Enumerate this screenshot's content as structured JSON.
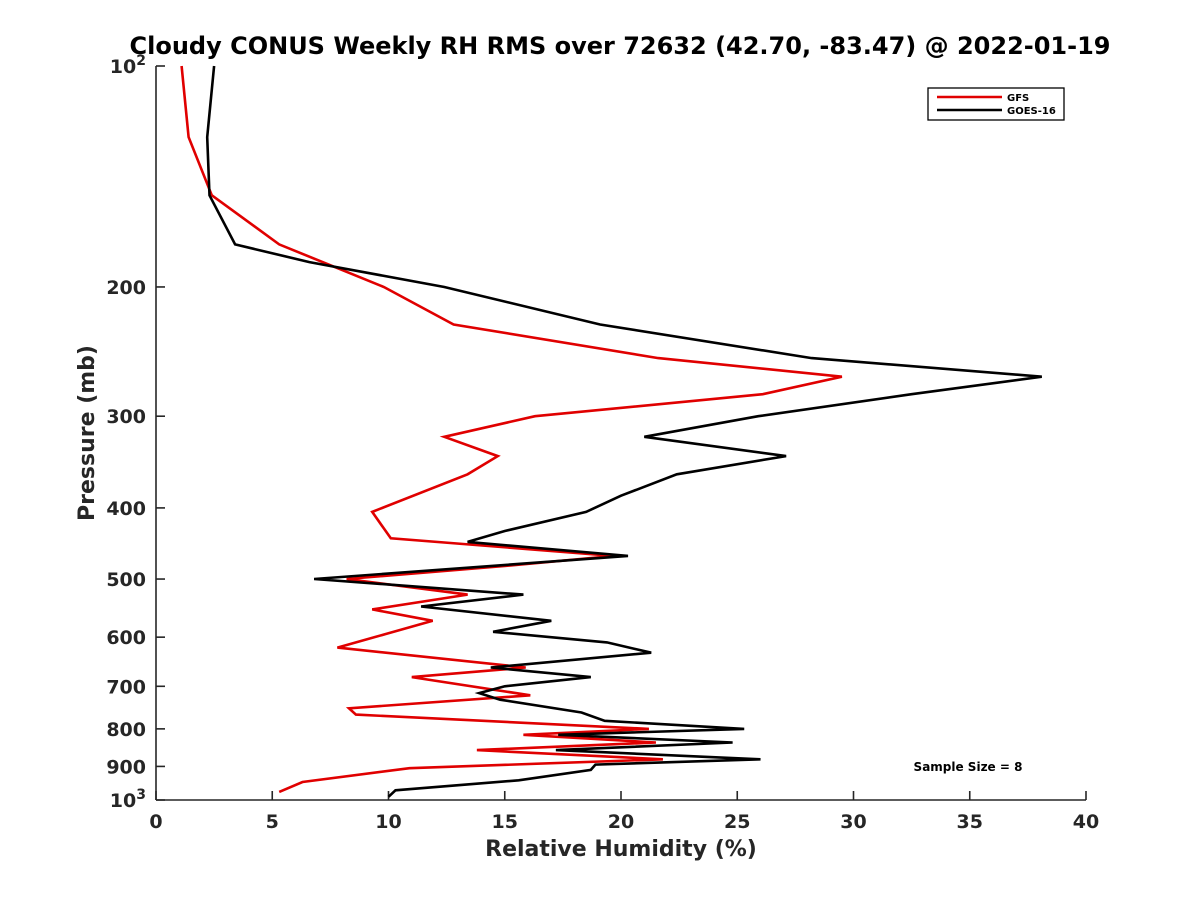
{
  "chart_data": {
    "type": "line",
    "title": "Cloudy CONUS Weekly RH RMS over 72632 (42.70, -83.47) @ 2022-01-19",
    "xlabel": "Relative Humidity (%)",
    "ylabel": "Pressure (mb)",
    "xlim": [
      0,
      40
    ],
    "ylim": [
      100,
      1000
    ],
    "y_scale": "log",
    "y_reversed": true,
    "x_ticks": [
      "0",
      "5",
      "10",
      "15",
      "20",
      "25",
      "30",
      "35",
      "40"
    ],
    "y_ticks": [
      {
        "value": 100,
        "base": "10",
        "exp": "2"
      },
      {
        "value": 200,
        "label": "200"
      },
      {
        "value": 300,
        "label": "300"
      },
      {
        "value": 400,
        "label": "400"
      },
      {
        "value": 500,
        "label": "500"
      },
      {
        "value": 600,
        "label": "600"
      },
      {
        "value": 700,
        "label": "700"
      },
      {
        "value": 800,
        "label": "800"
      },
      {
        "value": 900,
        "label": "900"
      },
      {
        "value": 1000,
        "base": "10",
        "exp": "3"
      }
    ],
    "legend_position": "top-right",
    "annotation": "Sample Size = 8",
    "series": [
      {
        "name": "GFS",
        "color": "#e00000",
        "points": [
          [
            1.1,
            100
          ],
          [
            1.4,
            125
          ],
          [
            2.4,
            150
          ],
          [
            5.3,
            175
          ],
          [
            9.8,
            200
          ],
          [
            12.8,
            225
          ],
          [
            21.6,
            250
          ],
          [
            29.5,
            265
          ],
          [
            26.1,
            280
          ],
          [
            16.3,
            300
          ],
          [
            12.4,
            320
          ],
          [
            14.7,
            340
          ],
          [
            13.4,
            360
          ],
          [
            9.3,
            405
          ],
          [
            10.1,
            440
          ],
          [
            19.7,
            465
          ],
          [
            15.0,
            480
          ],
          [
            8.2,
            500
          ],
          [
            13.4,
            525
          ],
          [
            9.3,
            550
          ],
          [
            11.9,
            570
          ],
          [
            7.8,
            620
          ],
          [
            15.9,
            660
          ],
          [
            11.0,
            680
          ],
          [
            16.1,
            720
          ],
          [
            8.3,
            750
          ],
          [
            8.6,
            765
          ],
          [
            21.2,
            800
          ],
          [
            15.8,
            815
          ],
          [
            21.5,
            835
          ],
          [
            13.8,
            855
          ],
          [
            21.8,
            880
          ],
          [
            10.9,
            905
          ],
          [
            6.3,
            945
          ],
          [
            5.3,
            975
          ]
        ]
      },
      {
        "name": "GOES-16",
        "color": "#000000",
        "points": [
          [
            2.5,
            100
          ],
          [
            2.2,
            125
          ],
          [
            2.3,
            150
          ],
          [
            3.4,
            175
          ],
          [
            6.6,
            185
          ],
          [
            12.4,
            200
          ],
          [
            19.1,
            225
          ],
          [
            28.2,
            250
          ],
          [
            38.1,
            265
          ],
          [
            32.5,
            280
          ],
          [
            25.9,
            300
          ],
          [
            21.0,
            320
          ],
          [
            27.1,
            340
          ],
          [
            22.4,
            360
          ],
          [
            20.0,
            385
          ],
          [
            18.5,
            405
          ],
          [
            15.0,
            430
          ],
          [
            13.4,
            445
          ],
          [
            20.3,
            465
          ],
          [
            6.8,
            500
          ],
          [
            15.8,
            525
          ],
          [
            11.4,
            545
          ],
          [
            17.0,
            570
          ],
          [
            14.5,
            590
          ],
          [
            19.4,
            610
          ],
          [
            21.3,
            630
          ],
          [
            14.4,
            660
          ],
          [
            18.7,
            680
          ],
          [
            15.0,
            700
          ],
          [
            13.9,
            715
          ],
          [
            14.8,
            730
          ],
          [
            18.3,
            760
          ],
          [
            19.3,
            780
          ],
          [
            25.3,
            800
          ],
          [
            17.3,
            815
          ],
          [
            24.8,
            835
          ],
          [
            17.2,
            855
          ],
          [
            26.0,
            880
          ],
          [
            18.9,
            895
          ],
          [
            18.7,
            910
          ],
          [
            15.6,
            940
          ],
          [
            10.3,
            970
          ],
          [
            10.0,
            990
          ]
        ]
      }
    ]
  }
}
